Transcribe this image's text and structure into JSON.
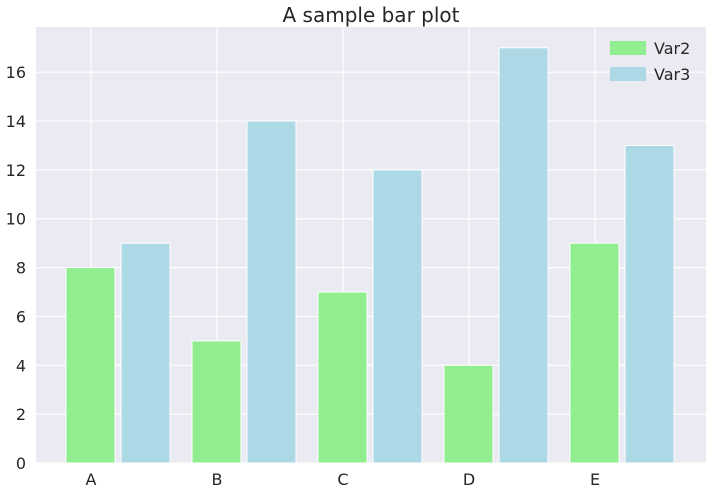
{
  "chart_data": {
    "type": "bar",
    "title": "A sample bar plot",
    "xlabel": "",
    "ylabel": "",
    "categories": [
      "A",
      "B",
      "C",
      "D",
      "E"
    ],
    "series": [
      {
        "name": "Var2",
        "values": [
          8,
          5,
          7,
          4,
          9
        ],
        "color": "#90ee90"
      },
      {
        "name": "Var3",
        "values": [
          9,
          14,
          12,
          17,
          13
        ],
        "color": "#add8e6"
      }
    ],
    "ylim": [
      0,
      17.85
    ],
    "yticks": [
      0,
      2,
      4,
      6,
      8,
      10,
      12,
      14,
      16
    ],
    "grid": true,
    "legend_position": "top-right",
    "background_color": "#eaeaf2",
    "grid_color": "#ffffff"
  }
}
